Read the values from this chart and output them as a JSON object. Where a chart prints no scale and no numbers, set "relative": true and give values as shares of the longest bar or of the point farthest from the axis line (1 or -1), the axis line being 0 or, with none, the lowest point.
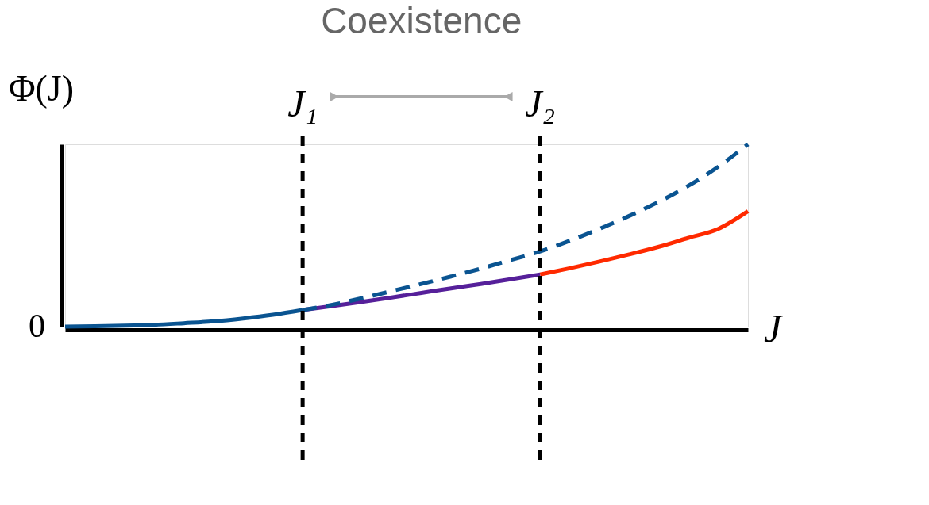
{
  "chart_data": {
    "type": "line",
    "relative": true,
    "ylabel": "Φ(J)",
    "xlabel": "J",
    "grid": false,
    "categories": [
      null,
      null,
      null,
      null,
      null,
      null,
      null,
      null,
      null,
      null,
      null,
      null,
      null,
      null,
      null,
      null,
      null,
      null,
      null,
      null,
      null,
      null,
      null,
      null
    ],
    "series": [
      {
        "color": "#0a5491",
        "line_style": "solid",
        "values": [
          0,
          0.002,
          0.005,
          0.01,
          0.019,
          0.029,
          0.045,
          0.065,
          0.091,
          null,
          null,
          null,
          null,
          null,
          null,
          null,
          null,
          null,
          null,
          null,
          null,
          null,
          null,
          null
        ]
      },
      {
        "color": "#56209a",
        "line_style": "solid",
        "values": [
          null,
          null,
          null,
          null,
          null,
          null,
          null,
          null,
          0.091,
          0.113,
          0.136,
          0.16,
          0.185,
          0.21,
          0.234,
          0.26,
          0.286,
          null,
          null,
          null,
          null,
          null,
          null,
          null
        ]
      },
      {
        "color": "#ff2a00",
        "line_style": "solid",
        "values": [
          null,
          null,
          null,
          null,
          null,
          null,
          null,
          null,
          null,
          null,
          null,
          null,
          null,
          null,
          null,
          null,
          0.286,
          0.32,
          0.357,
          0.396,
          0.438,
          0.487,
          0.536,
          0.633
        ]
      },
      {
        "color": "#0a5491",
        "line_style": "dashed",
        "values": [
          null,
          null,
          null,
          null,
          null,
          null,
          null,
          null,
          0.091,
          0.12,
          0.156,
          0.195,
          0.234,
          0.275,
          0.318,
          0.365,
          0.412,
          0.471,
          0.536,
          0.607,
          0.685,
          0.773,
          0.877,
          1
        ]
      }
    ],
    "annotations": [
      "Coexistence",
      "J₁",
      "J₂",
      "0"
    ]
  }
}
